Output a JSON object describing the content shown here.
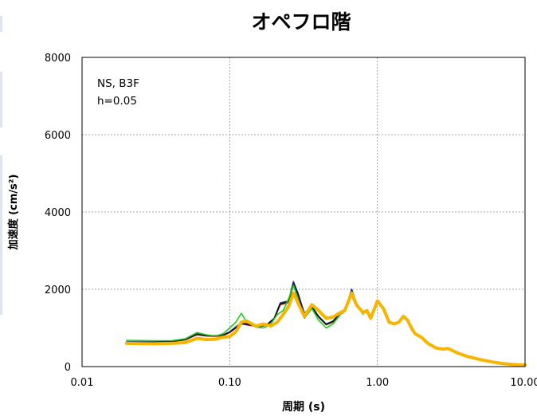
{
  "chart_data": {
    "type": "line",
    "title": "オペフロ階",
    "xlabel": "周期 (s)",
    "ylabel": "加速度 (cm/s²)",
    "x_scale": "log",
    "xlim": [
      0.01,
      10
    ],
    "ylim": [
      0,
      8000
    ],
    "x_ticks": [
      "0.01",
      "0.10",
      "1.00",
      "10.00"
    ],
    "y_ticks": [
      "0",
      "2000",
      "4000",
      "6000",
      "8000"
    ],
    "annotation": [
      "NS, B3F",
      "h=0.05"
    ],
    "grid": true,
    "series": [
      {
        "color": "#1f3c99",
        "points": [
          [
            0.02,
            640
          ],
          [
            0.03,
            640
          ],
          [
            0.04,
            650
          ],
          [
            0.05,
            700
          ],
          [
            0.06,
            860
          ],
          [
            0.07,
            800
          ],
          [
            0.08,
            790
          ],
          [
            0.09,
            820
          ],
          [
            0.1,
            900
          ],
          [
            0.12,
            1140
          ],
          [
            0.14,
            1080
          ],
          [
            0.16,
            1050
          ],
          [
            0.18,
            1100
          ],
          [
            0.2,
            1250
          ],
          [
            0.22,
            1650
          ],
          [
            0.25,
            1700
          ],
          [
            0.27,
            2200
          ],
          [
            0.29,
            1900
          ],
          [
            0.32,
            1380
          ],
          [
            0.36,
            1560
          ],
          [
            0.4,
            1300
          ],
          [
            0.45,
            1100
          ],
          [
            0.5,
            1180
          ],
          [
            0.55,
            1350
          ],
          [
            0.6,
            1450
          ],
          [
            0.67,
            2000
          ],
          [
            0.72,
            1650
          ],
          [
            0.8,
            1400
          ]
        ]
      },
      {
        "color": "#c0392b",
        "points": [
          [
            0.02,
            620
          ],
          [
            0.03,
            625
          ],
          [
            0.04,
            640
          ],
          [
            0.05,
            690
          ],
          [
            0.06,
            820
          ],
          [
            0.07,
            790
          ],
          [
            0.08,
            780
          ],
          [
            0.09,
            800
          ],
          [
            0.1,
            880
          ],
          [
            0.12,
            1100
          ],
          [
            0.14,
            1060
          ],
          [
            0.16,
            1030
          ],
          [
            0.18,
            1080
          ],
          [
            0.2,
            1230
          ],
          [
            0.22,
            1600
          ],
          [
            0.25,
            1650
          ],
          [
            0.27,
            2100
          ],
          [
            0.29,
            1850
          ],
          [
            0.32,
            1350
          ],
          [
            0.36,
            1520
          ],
          [
            0.4,
            1280
          ],
          [
            0.45,
            1080
          ],
          [
            0.5,
            1150
          ],
          [
            0.55,
            1330
          ],
          [
            0.6,
            1420
          ],
          [
            0.67,
            1950
          ],
          [
            0.72,
            1620
          ],
          [
            0.8,
            1380
          ]
        ]
      },
      {
        "color": "#111111",
        "points": [
          [
            0.02,
            630
          ],
          [
            0.03,
            630
          ],
          [
            0.04,
            645
          ],
          [
            0.05,
            700
          ],
          [
            0.06,
            840
          ],
          [
            0.07,
            800
          ],
          [
            0.08,
            800
          ],
          [
            0.09,
            810
          ],
          [
            0.1,
            890
          ],
          [
            0.12,
            1120
          ],
          [
            0.14,
            1070
          ],
          [
            0.16,
            1040
          ],
          [
            0.18,
            1090
          ],
          [
            0.2,
            1240
          ],
          [
            0.22,
            1620
          ],
          [
            0.25,
            1680
          ],
          [
            0.27,
            2150
          ],
          [
            0.29,
            1880
          ],
          [
            0.32,
            1360
          ],
          [
            0.36,
            1540
          ],
          [
            0.4,
            1290
          ],
          [
            0.45,
            1090
          ],
          [
            0.5,
            1170
          ],
          [
            0.55,
            1340
          ],
          [
            0.6,
            1430
          ],
          [
            0.67,
            1980
          ],
          [
            0.72,
            1640
          ],
          [
            0.8,
            1390
          ]
        ]
      },
      {
        "color": "#22cc22",
        "points": [
          [
            0.02,
            680
          ],
          [
            0.03,
            670
          ],
          [
            0.04,
            670
          ],
          [
            0.05,
            720
          ],
          [
            0.06,
            880
          ],
          [
            0.07,
            820
          ],
          [
            0.08,
            790
          ],
          [
            0.09,
            850
          ],
          [
            0.1,
            1000
          ],
          [
            0.11,
            1150
          ],
          [
            0.12,
            1380
          ],
          [
            0.13,
            1150
          ],
          [
            0.15,
            1020
          ],
          [
            0.17,
            1000
          ],
          [
            0.19,
            1100
          ],
          [
            0.21,
            1350
          ],
          [
            0.23,
            1450
          ],
          [
            0.25,
            1750
          ],
          [
            0.27,
            2100
          ],
          [
            0.29,
            1750
          ],
          [
            0.32,
            1250
          ],
          [
            0.36,
            1500
          ],
          [
            0.4,
            1200
          ],
          [
            0.45,
            1000
          ],
          [
            0.5,
            1100
          ],
          [
            0.55,
            1300
          ],
          [
            0.6,
            1500
          ],
          [
            0.67,
            1950
          ],
          [
            0.72,
            1600
          ],
          [
            0.8,
            1350
          ]
        ]
      },
      {
        "color": "#f7b500",
        "points": [
          [
            0.02,
            600
          ],
          [
            0.03,
            590
          ],
          [
            0.04,
            600
          ],
          [
            0.05,
            620
          ],
          [
            0.06,
            730
          ],
          [
            0.07,
            700
          ],
          [
            0.08,
            710
          ],
          [
            0.09,
            760
          ],
          [
            0.1,
            780
          ],
          [
            0.11,
            900
          ],
          [
            0.12,
            1150
          ],
          [
            0.13,
            1180
          ],
          [
            0.15,
            1050
          ],
          [
            0.17,
            1100
          ],
          [
            0.19,
            1050
          ],
          [
            0.21,
            1150
          ],
          [
            0.23,
            1350
          ],
          [
            0.25,
            1550
          ],
          [
            0.27,
            1900
          ],
          [
            0.29,
            1650
          ],
          [
            0.32,
            1300
          ],
          [
            0.36,
            1600
          ],
          [
            0.4,
            1450
          ],
          [
            0.45,
            1250
          ],
          [
            0.5,
            1280
          ],
          [
            0.55,
            1380
          ],
          [
            0.6,
            1450
          ],
          [
            0.67,
            1900
          ],
          [
            0.72,
            1600
          ],
          [
            0.8,
            1400
          ],
          [
            0.85,
            1450
          ],
          [
            0.9,
            1250
          ],
          [
            1.0,
            1700
          ],
          [
            1.1,
            1500
          ],
          [
            1.2,
            1150
          ],
          [
            1.3,
            1100
          ],
          [
            1.4,
            1150
          ],
          [
            1.5,
            1300
          ],
          [
            1.6,
            1200
          ],
          [
            1.7,
            1000
          ],
          [
            1.8,
            850
          ],
          [
            2.0,
            750
          ],
          [
            2.2,
            600
          ],
          [
            2.5,
            480
          ],
          [
            2.8,
            450
          ],
          [
            3.0,
            470
          ],
          [
            3.5,
            350
          ],
          [
            4.0,
            270
          ],
          [
            5.0,
            180
          ],
          [
            6.0,
            120
          ],
          [
            7.0,
            80
          ],
          [
            8.0,
            60
          ],
          [
            9.0,
            45
          ],
          [
            10.0,
            40
          ]
        ]
      }
    ]
  }
}
